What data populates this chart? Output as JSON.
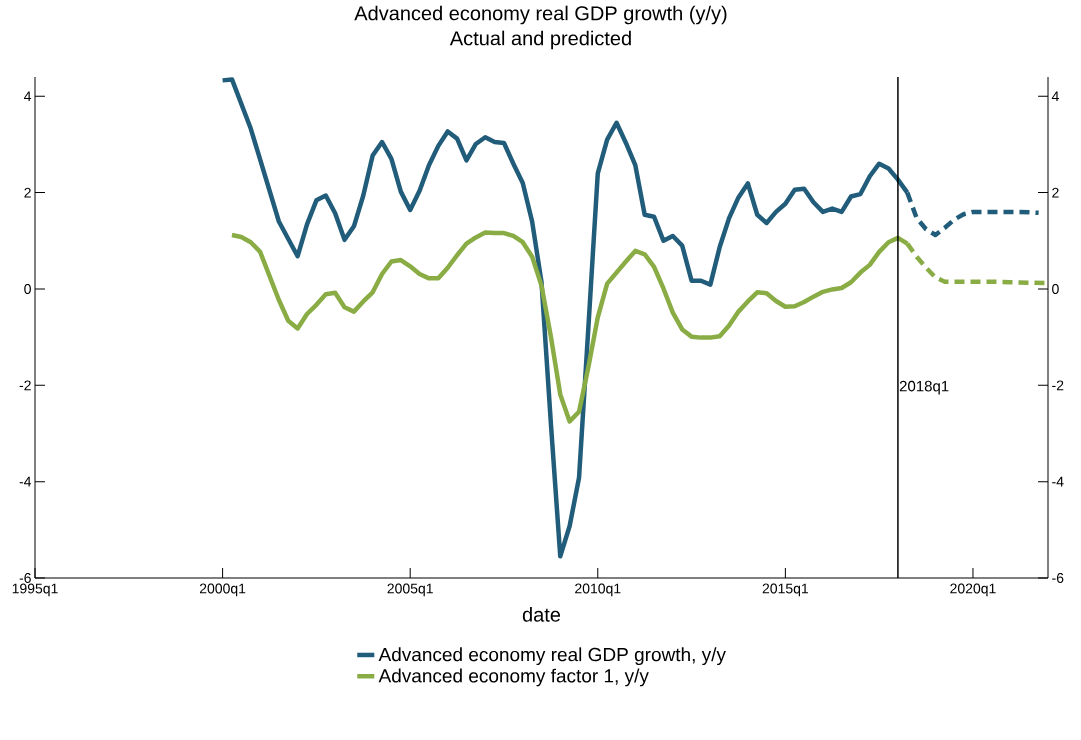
{
  "chart_data": {
    "type": "line",
    "title": "Advanced economy real GDP growth (y/y)",
    "subtitle": "Actual and predicted",
    "xlabel": "date",
    "xlim": [
      "1995-01",
      "2022-01"
    ],
    "xticks": [
      {
        "value": "1995-01",
        "label": "1995q1"
      },
      {
        "value": "2000-01",
        "label": "2000q1"
      },
      {
        "value": "2005-01",
        "label": "2005q1"
      },
      {
        "value": "2010-01",
        "label": "2010q1"
      },
      {
        "value": "2015-01",
        "label": "2015q1"
      },
      {
        "value": "2020-01",
        "label": "2020q1"
      }
    ],
    "ylim": [
      -6,
      4.4
    ],
    "yticks": [
      -6,
      -4,
      -2,
      0,
      2,
      4
    ],
    "y2lim": [
      -6,
      4.4
    ],
    "y2ticks": [
      -6,
      -4,
      -2,
      0,
      2,
      4
    ],
    "legend": "bottom",
    "ref_lines": [
      {
        "axis": "x",
        "value": "2018-01",
        "label": "2018q1",
        "color": "#000000"
      }
    ],
    "series": [
      {
        "name": "Advanced economy real GDP growth, y/y",
        "color": "#215d7a",
        "line_style": "solid",
        "x": [
          "2000-01",
          "2000-04",
          "2000-10",
          "2001-07",
          "2002-01",
          "2002-04",
          "2002-07",
          "2002-10",
          "2003-01",
          "2003-04",
          "2003-07",
          "2003-10",
          "2004-01",
          "2004-04",
          "2004-07",
          "2004-10",
          "2005-01",
          "2005-04",
          "2005-07",
          "2005-10",
          "2006-01",
          "2006-04",
          "2006-07",
          "2006-10",
          "2007-01",
          "2007-04",
          "2007-07",
          "2007-10",
          "2008-01",
          "2008-04",
          "2008-07",
          "2008-10",
          "2009-01",
          "2009-04",
          "2009-07",
          "2009-10",
          "2010-01",
          "2010-04",
          "2010-07",
          "2010-10",
          "2011-01",
          "2011-04",
          "2011-07",
          "2011-10",
          "2012-01",
          "2012-04",
          "2012-07",
          "2012-10",
          "2013-01",
          "2013-04",
          "2013-07",
          "2013-10",
          "2014-01",
          "2014-04",
          "2014-07",
          "2014-10",
          "2015-01",
          "2015-04",
          "2015-07",
          "2015-10",
          "2016-01",
          "2016-04",
          "2016-07",
          "2016-10",
          "2017-01",
          "2017-04",
          "2017-07",
          "2017-10",
          "2018-01",
          "2018-04"
        ],
        "values": [
          4.33,
          4.35,
          3.33,
          1.4,
          0.68,
          1.34,
          1.84,
          1.94,
          1.57,
          1.02,
          1.3,
          1.94,
          2.77,
          3.05,
          2.7,
          2.02,
          1.64,
          2.04,
          2.57,
          2.97,
          3.27,
          3.12,
          2.67,
          3.01,
          3.15,
          3.05,
          3.03,
          2.6,
          2.2,
          1.4,
          0.14,
          -2.79,
          -5.55,
          -4.92,
          -3.92,
          -0.79,
          2.4,
          3.1,
          3.45,
          3.03,
          2.57,
          1.54,
          1.5,
          1.0,
          1.1,
          0.9,
          0.17,
          0.17,
          0.09,
          0.87,
          1.47,
          1.9,
          2.19,
          1.54,
          1.37,
          1.6,
          1.77,
          2.06,
          2.08,
          1.8,
          1.6,
          1.67,
          1.6,
          1.92,
          1.97,
          2.34,
          2.6,
          2.5,
          2.27,
          2.0
        ]
      },
      {
        "color": "#215d7a",
        "line_style": "dashed",
        "x": [
          "2018-04",
          "2018-07",
          "2018-10",
          "2019-01",
          "2019-04",
          "2019-07",
          "2019-10",
          "2020-01",
          "2020-07",
          "2021-01",
          "2021-07",
          "2021-10"
        ],
        "values": [
          2.0,
          1.47,
          1.24,
          1.12,
          1.27,
          1.44,
          1.55,
          1.6,
          1.6,
          1.6,
          1.59,
          1.58
        ]
      },
      {
        "name": "Advanced economy factor 1, y/y",
        "color": "#8aac45",
        "line_style": "solid",
        "x": [
          "2000-04",
          "2000-07",
          "2000-10",
          "2001-01",
          "2001-04",
          "2001-07",
          "2001-10",
          "2002-01",
          "2002-04",
          "2002-07",
          "2002-10",
          "2003-01",
          "2003-04",
          "2003-07",
          "2003-10",
          "2004-01",
          "2004-04",
          "2004-07",
          "2004-10",
          "2005-01",
          "2005-04",
          "2005-07",
          "2005-10",
          "2006-01",
          "2006-04",
          "2006-07",
          "2006-10",
          "2007-01",
          "2007-04",
          "2007-07",
          "2007-10",
          "2008-01",
          "2008-04",
          "2008-07",
          "2008-10",
          "2009-01",
          "2009-04",
          "2009-07",
          "2009-10",
          "2010-01",
          "2010-04",
          "2010-07",
          "2010-10",
          "2011-01",
          "2011-04",
          "2011-07",
          "2011-10",
          "2012-01",
          "2012-04",
          "2012-07",
          "2012-10",
          "2013-01",
          "2013-04",
          "2013-07",
          "2013-10",
          "2014-01",
          "2014-04",
          "2014-07",
          "2014-10",
          "2015-01",
          "2015-04",
          "2015-07",
          "2015-10",
          "2016-01",
          "2016-04",
          "2016-07",
          "2016-10",
          "2017-01",
          "2017-04",
          "2017-07",
          "2017-10",
          "2018-01",
          "2018-04"
        ],
        "values": [
          1.12,
          1.08,
          0.97,
          0.77,
          0.27,
          -0.23,
          -0.66,
          -0.82,
          -0.52,
          -0.33,
          -0.11,
          -0.08,
          -0.38,
          -0.47,
          -0.26,
          -0.07,
          0.31,
          0.57,
          0.6,
          0.47,
          0.31,
          0.22,
          0.22,
          0.44,
          0.7,
          0.94,
          1.07,
          1.17,
          1.16,
          1.16,
          1.1,
          0.97,
          0.67,
          0.07,
          -0.99,
          -2.19,
          -2.75,
          -2.55,
          -1.62,
          -0.59,
          0.11,
          0.34,
          0.57,
          0.79,
          0.72,
          0.46,
          0.01,
          -0.49,
          -0.84,
          -0.99,
          -1.01,
          -1.01,
          -0.98,
          -0.76,
          -0.47,
          -0.26,
          -0.07,
          -0.09,
          -0.25,
          -0.37,
          -0.36,
          -0.27,
          -0.16,
          -0.06,
          -0.01,
          0.02,
          0.14,
          0.34,
          0.5,
          0.77,
          0.97,
          1.06,
          0.94
        ]
      },
      {
        "color": "#8aac45",
        "line_style": "dashed",
        "x": [
          "2018-04",
          "2018-07",
          "2018-10",
          "2019-01",
          "2019-04",
          "2019-10",
          "2020-07",
          "2021-01",
          "2021-07",
          "2022-01"
        ],
        "values": [
          0.94,
          0.67,
          0.44,
          0.24,
          0.15,
          0.15,
          0.15,
          0.14,
          0.13,
          0.12
        ]
      }
    ]
  }
}
